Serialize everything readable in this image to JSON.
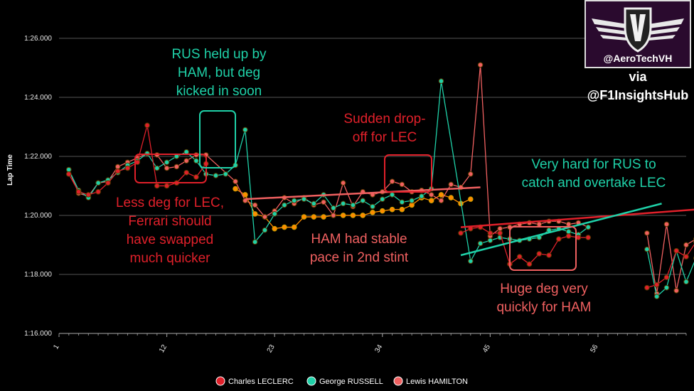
{
  "chart_data": {
    "type": "line",
    "ylabel": "Lap Time",
    "xlabel": "",
    "x_ticks": [
      1,
      12,
      23,
      34,
      45,
      56
    ],
    "y_ticks": [
      "1:16.000",
      "1:18.000",
      "1:20.000",
      "1:22.000",
      "1:24.000",
      "1:26.000"
    ],
    "ylim_seconds": [
      76,
      86.6
    ],
    "xlim": [
      1,
      65
    ],
    "grid": true,
    "legend_position": "bottom",
    "series": [
      {
        "name": "Charles LECLERC",
        "color": "#e0202a",
        "x": [
          2,
          3,
          4,
          5,
          6,
          7,
          8,
          9,
          10,
          11,
          12,
          13,
          14,
          15,
          16,
          42,
          43,
          44,
          45,
          46,
          47,
          48,
          49,
          50,
          51,
          52,
          53,
          54,
          55,
          61,
          62,
          63,
          64,
          65,
          66
        ],
        "y": [
          81.4,
          80.8,
          80.7,
          80.8,
          81.1,
          81.5,
          81.6,
          81.8,
          83.05,
          81.0,
          81.0,
          81.1,
          81.45,
          81.3,
          81.75,
          79.4,
          79.55,
          79.6,
          79.4,
          79.4,
          78.35,
          78.6,
          78.35,
          78.7,
          78.65,
          79.2,
          79.3,
          79.25,
          79.25,
          77.55,
          77.65,
          77.9,
          78.8,
          78.6,
          79.1
        ]
      },
      {
        "name": "George RUSSELL",
        "color": "#1fd1a8",
        "x": [
          2,
          3,
          4,
          5,
          6,
          7,
          8,
          9,
          10,
          11,
          12,
          13,
          14,
          15,
          16,
          17,
          18,
          19,
          20,
          21,
          22,
          23,
          24,
          25,
          26,
          27,
          28,
          29,
          30,
          31,
          32,
          33,
          34,
          35,
          36,
          37,
          38,
          39,
          40,
          43,
          44,
          45,
          46,
          47,
          48,
          49,
          50,
          51,
          52,
          53,
          54,
          55,
          61,
          62,
          63,
          64,
          65,
          66
        ],
        "y": [
          81.55,
          80.85,
          80.6,
          81.1,
          81.2,
          81.45,
          81.7,
          81.85,
          82.1,
          81.6,
          81.8,
          82.0,
          82.15,
          81.85,
          81.4,
          81.35,
          81.4,
          81.7,
          82.9,
          79.1,
          79.5,
          80.05,
          80.35,
          80.5,
          80.55,
          80.4,
          80.7,
          80.25,
          80.4,
          80.35,
          80.5,
          80.3,
          80.55,
          80.7,
          80.45,
          80.5,
          80.65,
          80.9,
          84.55,
          78.45,
          79.05,
          79.15,
          79.25,
          79.2,
          79.15,
          79.2,
          79.25,
          79.5,
          79.55,
          79.45,
          79.35,
          79.6,
          78.85,
          77.25,
          77.55,
          78.8,
          77.75,
          78.55
        ]
      },
      {
        "name": "Lewis HAMILTON",
        "color": "#f06060",
        "x": [
          2,
          3,
          4,
          5,
          6,
          7,
          8,
          9,
          10,
          11,
          12,
          13,
          14,
          15,
          16,
          19,
          20,
          21,
          22,
          23,
          24,
          25,
          26,
          27,
          28,
          29,
          30,
          31,
          32,
          33,
          34,
          35,
          36,
          37,
          38,
          39,
          40,
          41,
          42,
          43,
          44,
          45,
          46,
          47,
          48,
          49,
          50,
          51,
          52,
          53,
          54,
          55,
          61,
          62,
          63,
          64,
          65,
          66
        ],
        "y": [
          81.55,
          80.75,
          80.65,
          81.1,
          81.15,
          81.65,
          81.8,
          81.95,
          82.1,
          82.05,
          81.6,
          81.65,
          81.85,
          82.05,
          82.05,
          81.15,
          80.5,
          80.35,
          79.95,
          80.15,
          80.6,
          80.4,
          80.6,
          80.35,
          80.45,
          80.0,
          81.1,
          80.3,
          80.8,
          80.7,
          80.8,
          81.15,
          81.05,
          80.8,
          80.85,
          80.7,
          80.5,
          81.05,
          80.95,
          81.4,
          85.1,
          79.3,
          79.55,
          79.6,
          79.7,
          79.75,
          79.7,
          79.8,
          79.8,
          79.7,
          79.75,
          79.6,
          79.4,
          77.35,
          79.7,
          77.45,
          79.0,
          79.2
        ]
      },
      {
        "name": "Lewis HAMILTON",
        "color": "#ff8c00",
        "x": [
          19,
          20,
          21,
          22,
          23,
          24,
          25,
          26,
          27,
          28,
          29,
          30,
          31,
          32,
          33,
          34,
          35,
          36,
          37,
          38,
          39,
          40,
          41,
          42,
          43
        ],
        "y": [
          80.9,
          80.7,
          80.05,
          79.95,
          79.55,
          79.6,
          79.6,
          79.95,
          79.95,
          79.95,
          80.0,
          80.0,
          80.0,
          80.0,
          80.1,
          80.15,
          80.2,
          80.2,
          80.35,
          80.6,
          80.5,
          80.7,
          80.6,
          80.4,
          80.55
        ]
      }
    ],
    "annotations": [
      {
        "id": "rus-held-up",
        "lines": [
          "RUS held up by",
          "HAM, but deg",
          "kicked in soon"
        ],
        "color": "#1fd1a8"
      },
      {
        "id": "less-deg",
        "lines": [
          "Less deg for LEC,",
          "Ferrari should",
          "have swapped",
          "much quicker"
        ],
        "color": "#e0202a"
      },
      {
        "id": "ham-stable",
        "lines": [
          "HAM had stable",
          "pace in 2nd stint"
        ],
        "color": "#f06060"
      },
      {
        "id": "sudden-drop",
        "lines": [
          "Sudden drop-",
          "off for LEC"
        ],
        "color": "#e0202a"
      },
      {
        "id": "very-hard",
        "lines": [
          "Very hard for RUS to",
          "catch and overtake LEC"
        ],
        "color": "#1fd1a8"
      },
      {
        "id": "huge-deg",
        "lines": [
          "Huge deg very",
          "quickly for HAM"
        ],
        "color": "#f06060"
      }
    ],
    "legend": [
      {
        "name": "Charles LECLERC",
        "color": "#e0202a"
      },
      {
        "name": "George RUSSELL",
        "color": "#1fd1a8"
      },
      {
        "name": "Lewis HAMILTON",
        "color": "#f06060"
      }
    ]
  },
  "branding": {
    "handle": "@AeroTechVH",
    "via": "via",
    "source": "@F1InsightsHub"
  }
}
